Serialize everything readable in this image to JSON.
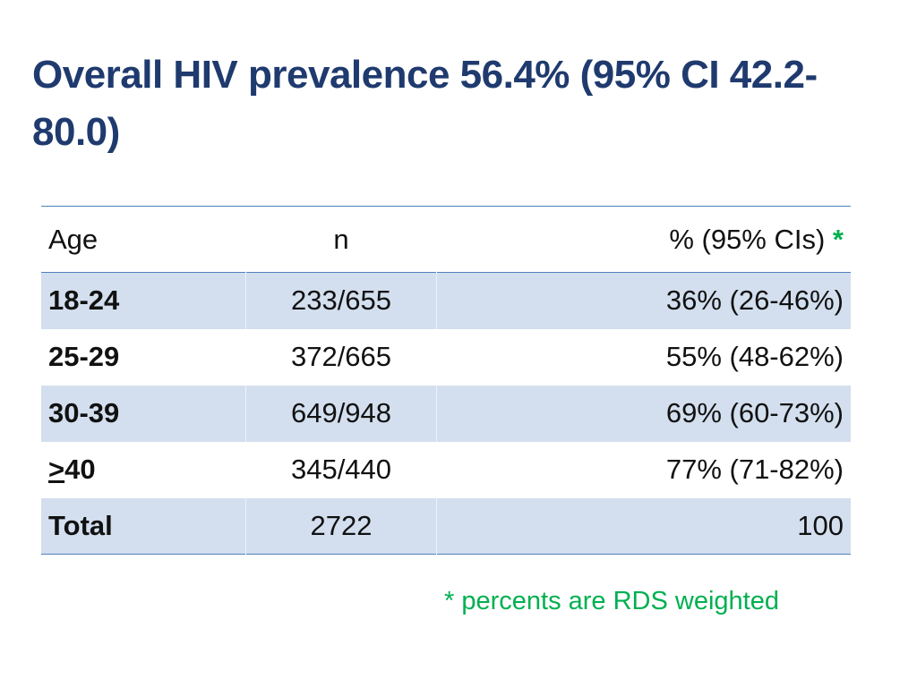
{
  "title": "Overall HIV prevalence 56.4%  (95% CI 42.2-80.0)",
  "table": {
    "headers": {
      "age": "Age",
      "n": "n",
      "pct": "% (95% CIs)",
      "pct_marker": "*"
    },
    "rows": [
      {
        "age": "18-24",
        "n": "233/655",
        "pct": "36% (26-46%)"
      },
      {
        "age": "25-29",
        "n": "372/665",
        "pct": "55% (48-62%)"
      },
      {
        "age": "30-39",
        "n": "649/948",
        "pct": "69% (60-73%)"
      },
      {
        "age_prefix": ">",
        "age": "40",
        "n": "345/440",
        "pct": "77% (71-82%)"
      },
      {
        "age": "Total",
        "n": "2722",
        "pct": "100"
      }
    ]
  },
  "footnote": "* percents are RDS weighted",
  "colors": {
    "title": "#1f3a6e",
    "row_shade": "#d3dfee",
    "rule": "#4f81bd",
    "accent_green": "#00b050"
  }
}
